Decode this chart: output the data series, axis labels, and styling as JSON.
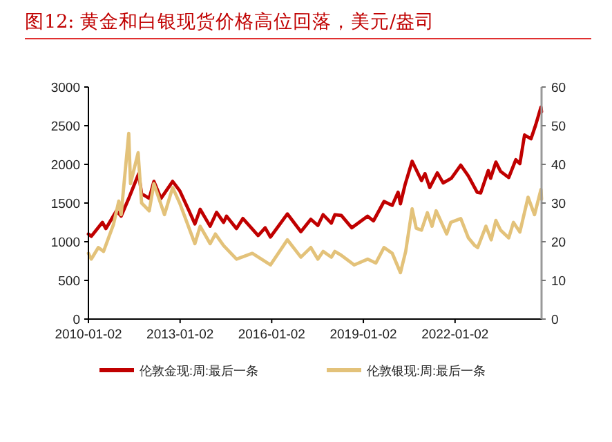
{
  "chart_data": {
    "type": "line",
    "title": "图12:  黄金和白银现货价格高位回落，美元/盎司",
    "xlim": [
      "2010-01-02",
      "2024-11-01"
    ],
    "xticks": [
      {
        "value": "2010-01-02",
        "label": "2010-01-02"
      },
      {
        "value": "2013-01-02",
        "label": "2013-01-02"
      },
      {
        "value": "2016-01-02",
        "label": "2016-01-02"
      },
      {
        "value": "2019-01-02",
        "label": "2019-01-02"
      },
      {
        "value": "2022-01-02",
        "label": "2022-01-02"
      }
    ],
    "ylim": [
      0,
      3000
    ],
    "yticks": [
      0,
      500,
      1000,
      1500,
      2000,
      2500,
      3000
    ],
    "y2lim": [
      0,
      60
    ],
    "y2ticks": [
      0,
      10,
      20,
      30,
      40,
      50,
      60
    ],
    "legend": "bottom",
    "grid": false,
    "marker": "none",
    "line_style": "solid",
    "series": [
      {
        "name": "伦敦金现:周:最后一条",
        "color": "#c00000",
        "x": [
          "2010-01-02",
          "2010-02-05",
          "2010-06-18",
          "2010-07-30",
          "2010-12-03",
          "2011-01-28",
          "2011-04-29",
          "2011-08-26",
          "2011-09-30",
          "2011-12-30",
          "2012-02-24",
          "2012-05-18",
          "2012-10-05",
          "2012-12-28",
          "2013-04-19",
          "2013-06-28",
          "2013-08-30",
          "2013-12-27",
          "2014-03-14",
          "2014-06-06",
          "2014-07-11",
          "2014-11-07",
          "2015-01-23",
          "2015-07-24",
          "2015-10-16",
          "2015-12-18",
          "2016-07-08",
          "2016-12-16",
          "2017-04-14",
          "2017-07-07",
          "2017-09-08",
          "2017-12-15",
          "2018-01-26",
          "2018-04-13",
          "2018-08-17",
          "2019-02-22",
          "2019-05-03",
          "2019-09-06",
          "2019-12-13",
          "2020-02-21",
          "2020-03-20",
          "2020-05-15",
          "2020-08-07",
          "2020-11-27",
          "2021-01-08",
          "2021-03-05",
          "2021-06-04",
          "2021-08-13",
          "2021-11-19",
          "2022-03-11",
          "2022-06-10",
          "2022-09-23",
          "2022-11-04",
          "2023-02-03",
          "2023-03-03",
          "2023-05-05",
          "2023-06-30",
          "2023-10-06",
          "2023-12-29",
          "2024-02-16",
          "2024-04-12",
          "2024-06-28",
          "2024-08-23",
          "2024-10-25",
          "2024-11-01"
        ],
        "values": [
          1100,
          1070,
          1250,
          1170,
          1400,
          1330,
          1560,
          1880,
          1620,
          1560,
          1780,
          1560,
          1780,
          1660,
          1400,
          1230,
          1420,
          1200,
          1380,
          1250,
          1330,
          1170,
          1300,
          1080,
          1180,
          1060,
          1360,
          1130,
          1290,
          1210,
          1350,
          1240,
          1350,
          1340,
          1180,
          1330,
          1270,
          1520,
          1470,
          1640,
          1490,
          1740,
          2040,
          1790,
          1880,
          1700,
          1890,
          1760,
          1820,
          1990,
          1850,
          1640,
          1630,
          1920,
          1820,
          2030,
          1910,
          1830,
          2060,
          2010,
          2380,
          2330,
          2510,
          2740,
          2680
        ]
      },
      {
        "name": "伦敦银现:周:最后一条",
        "color": "#e3c27a",
        "axis": "y2",
        "x": [
          "2010-01-02",
          "2010-02-05",
          "2010-04-30",
          "2010-07-02",
          "2010-10-29",
          "2010-12-31",
          "2011-01-28",
          "2011-04-29",
          "2011-05-20",
          "2011-08-19",
          "2011-09-30",
          "2011-12-30",
          "2012-02-24",
          "2012-06-29",
          "2012-10-05",
          "2012-12-28",
          "2013-06-28",
          "2013-08-30",
          "2013-12-27",
          "2014-02-28",
          "2014-06-06",
          "2014-11-07",
          "2015-05-15",
          "2015-12-18",
          "2016-07-08",
          "2016-12-16",
          "2017-04-14",
          "2017-07-07",
          "2017-09-08",
          "2017-12-15",
          "2018-01-26",
          "2018-04-13",
          "2018-09-14",
          "2019-02-22",
          "2019-05-31",
          "2019-09-06",
          "2019-12-13",
          "2020-03-20",
          "2020-05-22",
          "2020-08-07",
          "2020-09-25",
          "2020-11-27",
          "2021-02-05",
          "2021-04-02",
          "2021-05-21",
          "2021-09-24",
          "2021-11-12",
          "2022-03-11",
          "2022-06-10",
          "2022-08-26",
          "2022-09-30",
          "2023-01-06",
          "2023-03-10",
          "2023-05-05",
          "2023-06-30",
          "2023-10-06",
          "2023-12-01",
          "2024-02-16",
          "2024-05-24",
          "2024-08-09",
          "2024-10-25",
          "2024-11-01"
        ],
        "values": [
          17,
          15.5,
          18.5,
          17.5,
          24.5,
          30.5,
          27,
          48,
          35,
          43,
          30,
          28,
          35,
          27,
          34,
          30,
          19.5,
          24,
          19.5,
          22,
          19,
          15.5,
          17,
          14,
          20.5,
          16,
          18.5,
          15.5,
          17.5,
          16,
          17.5,
          16.5,
          14,
          15.5,
          14.5,
          18.5,
          17,
          12,
          17.5,
          28.5,
          23.5,
          23,
          27.5,
          24,
          28,
          22,
          25,
          26,
          21,
          19,
          18.5,
          24,
          20.5,
          25.5,
          23,
          21,
          25,
          22.5,
          31.5,
          27,
          33.5,
          31
        ]
      }
    ]
  }
}
